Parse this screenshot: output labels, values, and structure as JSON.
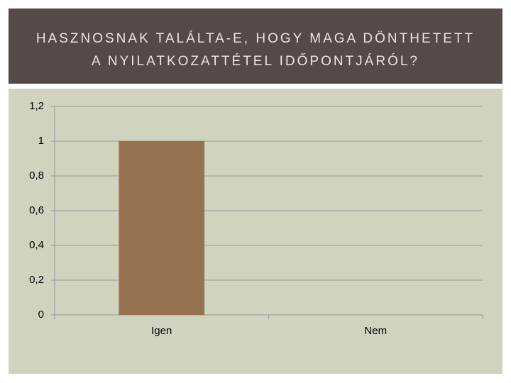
{
  "chart_data": {
    "type": "bar",
    "title": [
      "HASZNOSNAK TALÁLTA-E, HOGY MAGA DÖNTHETETT",
      "A NYILATKOZATTÉTEL IDŐPONTJÁRÓL?"
    ],
    "categories": [
      "Igen",
      "Nem"
    ],
    "values": [
      1,
      0
    ],
    "color": "#957350",
    "ylim": [
      0,
      1.2
    ],
    "yticks": [
      0,
      {
        "value": 0.2,
        "label": "0,2"
      },
      {
        "value": 0.4,
        "label": "0,4"
      },
      {
        "value": 0.6,
        "label": "0,6"
      },
      {
        "value": 0.8,
        "label": "0,8"
      },
      1,
      {
        "value": 1.2,
        "label": "1,2"
      }
    ],
    "grid": true
  }
}
